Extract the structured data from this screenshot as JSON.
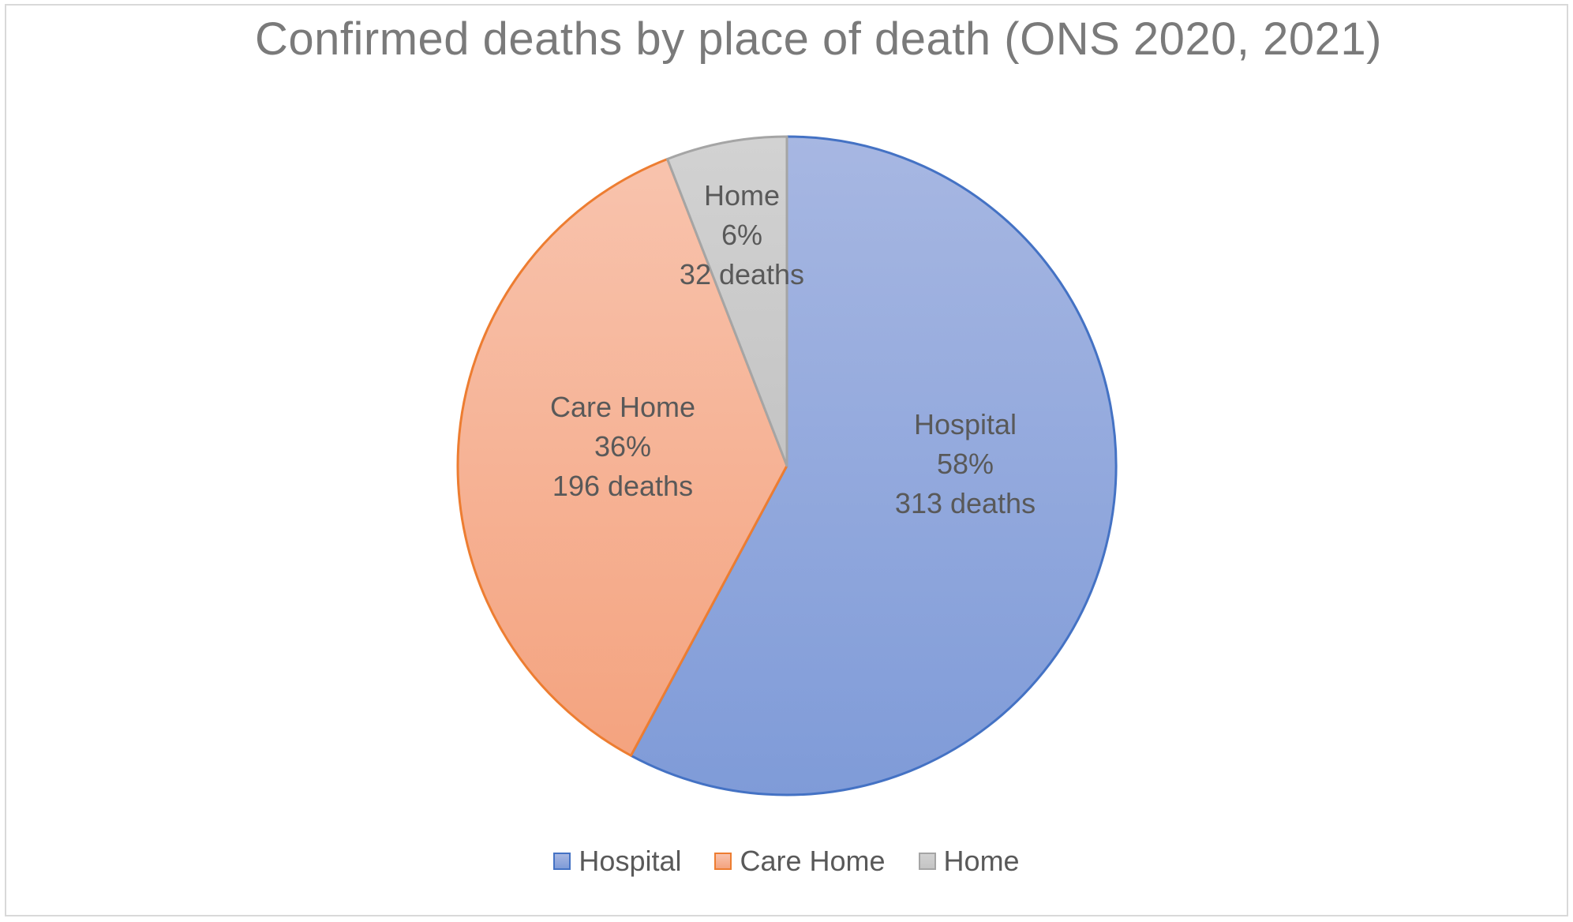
{
  "chart_data": {
    "type": "pie",
    "title": "Confirmed deaths by place of death (ONS 2020, 2021)",
    "slices": [
      {
        "name": "Hospital",
        "value": 313,
        "percent_label": "58%",
        "value_label": "313 deaths",
        "fill_top": "#a7b7e2",
        "fill_bottom": "#7f9bd8",
        "stroke": "#4472c4"
      },
      {
        "name": "Care Home",
        "value": 196,
        "percent_label": "36%",
        "value_label": "196 deaths",
        "fill_top": "#f8c3ad",
        "fill_bottom": "#f4a37f",
        "stroke": "#ed7d31"
      },
      {
        "name": "Home",
        "value": 32,
        "percent_label": "6%",
        "value_label": "32 deaths",
        "fill_top": "#d2d2d2",
        "fill_bottom": "#c4c4c4",
        "stroke": "#a5a5a5"
      }
    ],
    "legend_position": "bottom",
    "start_angle": "12 o'clock",
    "direction": "clockwise"
  }
}
